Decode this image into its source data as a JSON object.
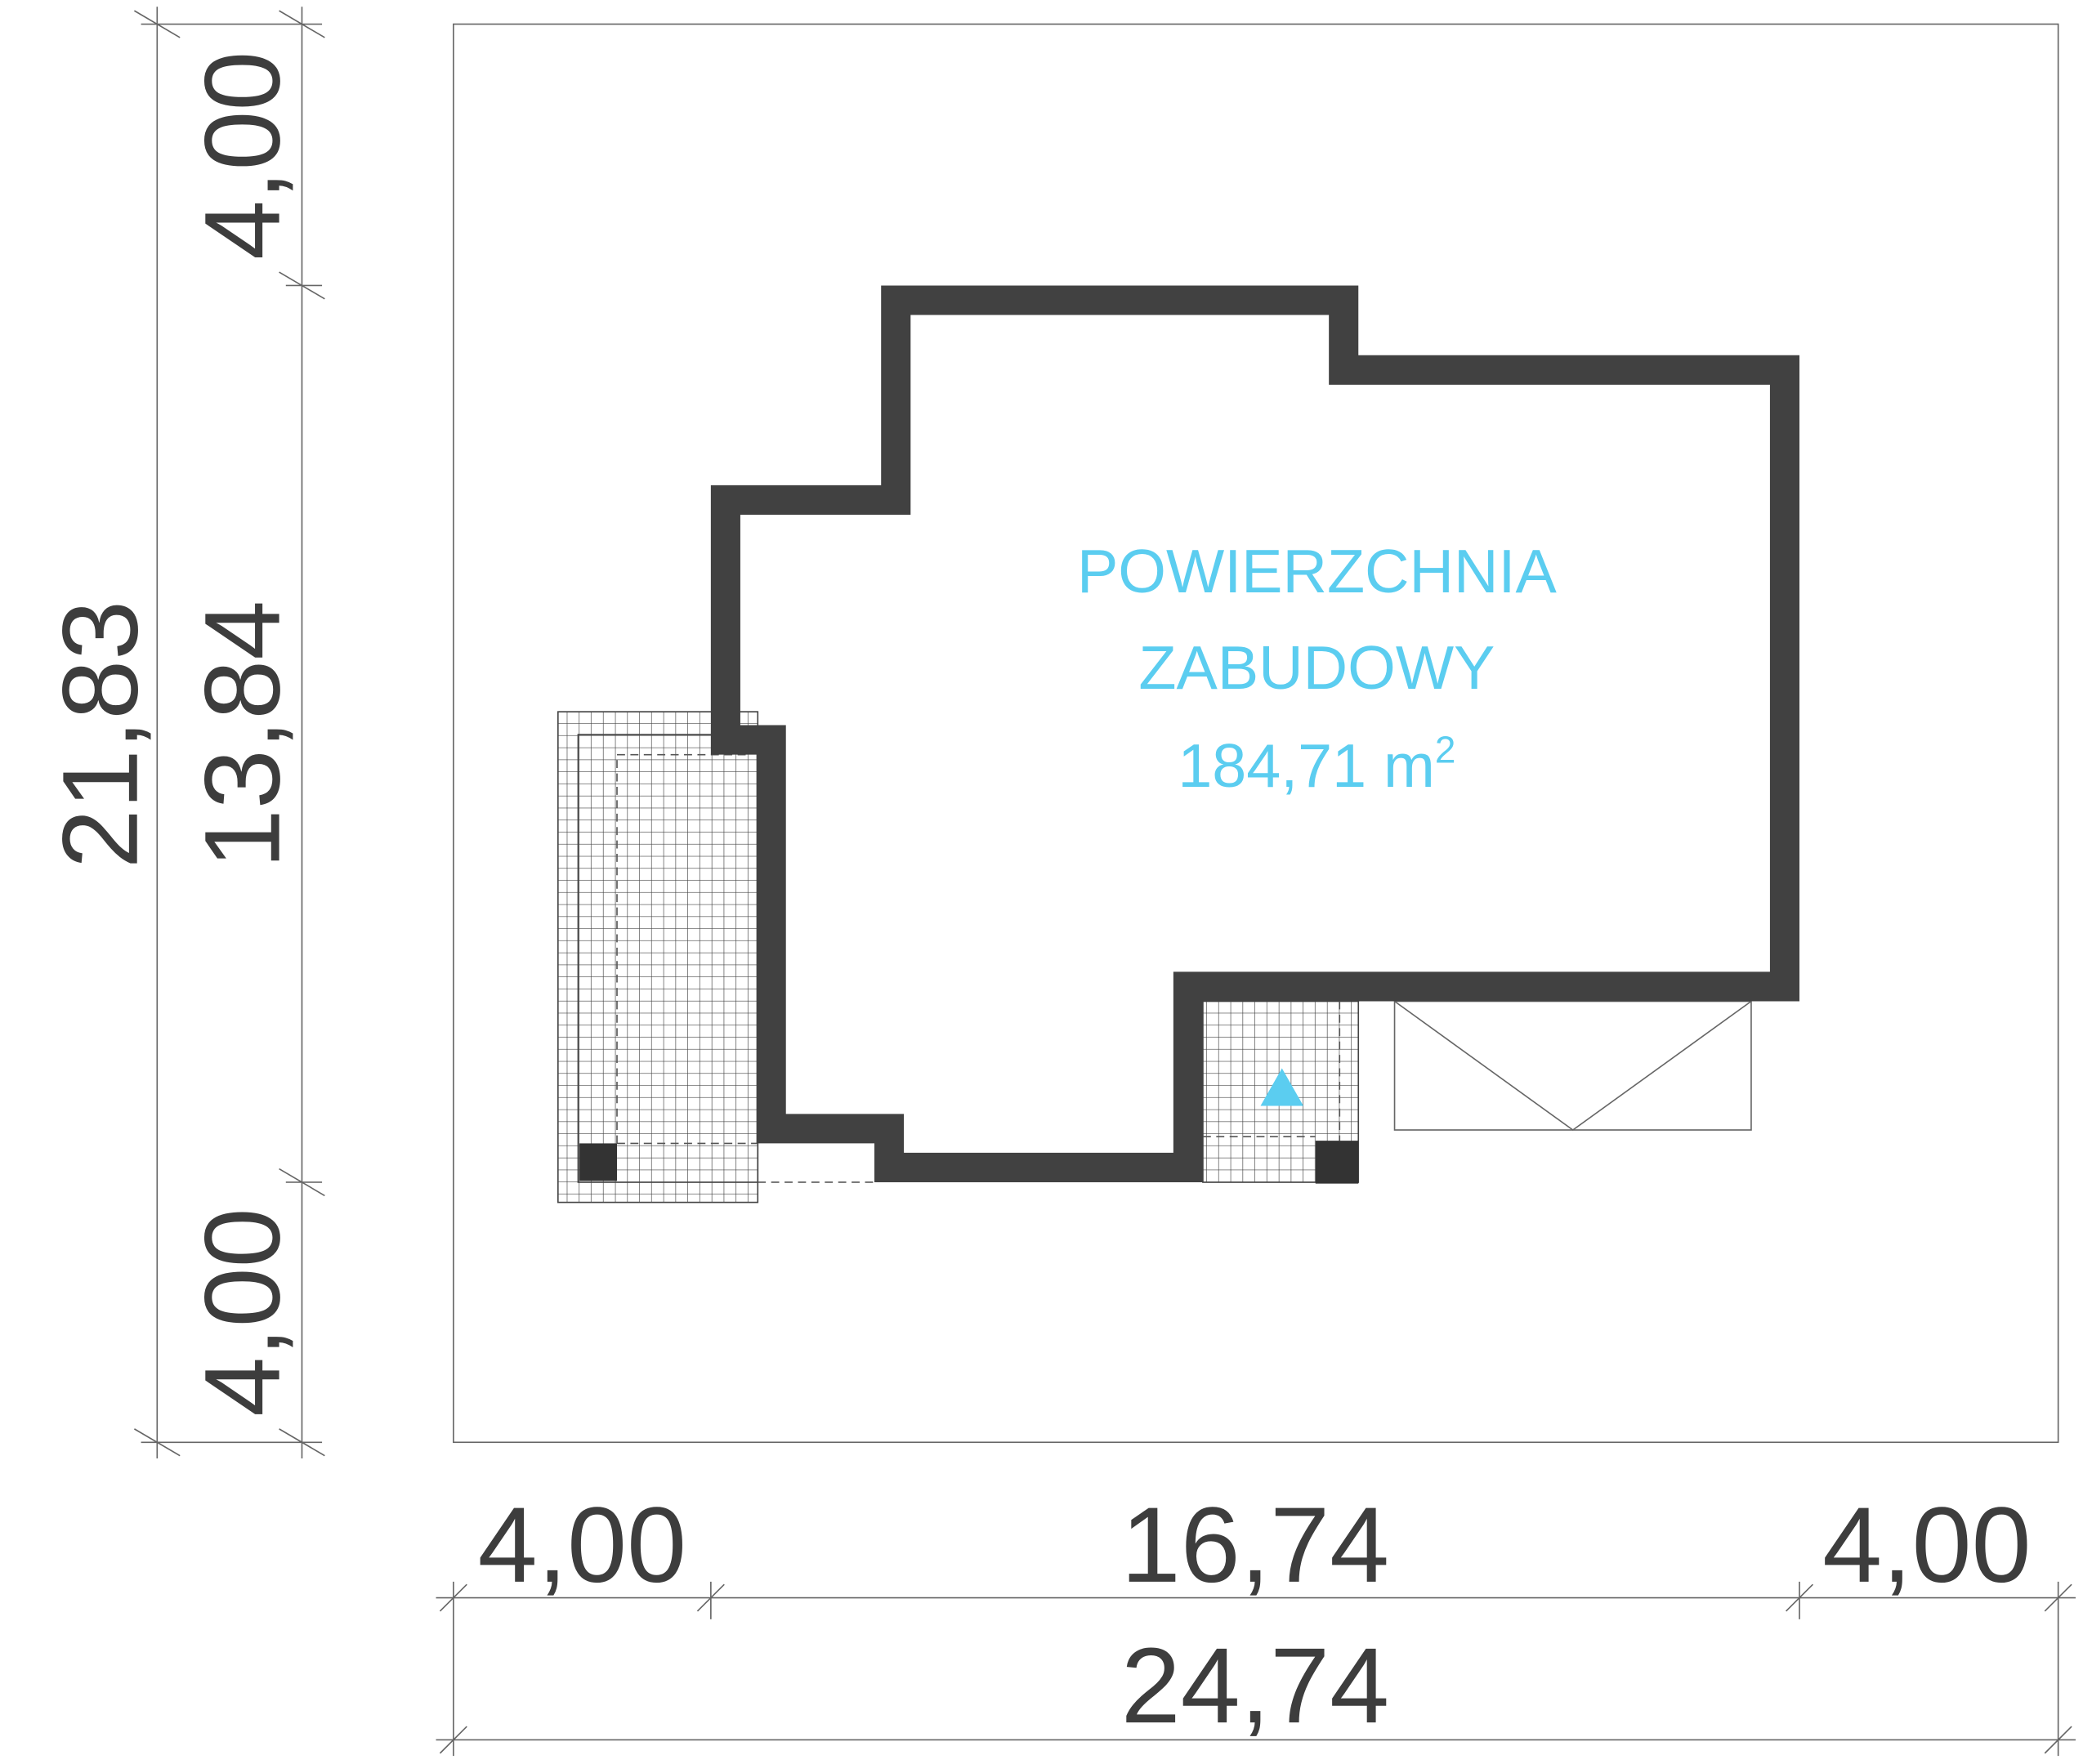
{
  "dimensions": {
    "vertical": {
      "total": "21,83",
      "top": "4,00",
      "middle": "13,84",
      "bottom": "4,00"
    },
    "horizontal": {
      "left": "4,00",
      "middle": "16,74",
      "right": "4,00",
      "total": "24,74"
    }
  },
  "area": {
    "line1": "POWIERZCHNIA",
    "line2": "ZABUDOWY",
    "value": "184,71 m",
    "unit_exponent": "2"
  }
}
